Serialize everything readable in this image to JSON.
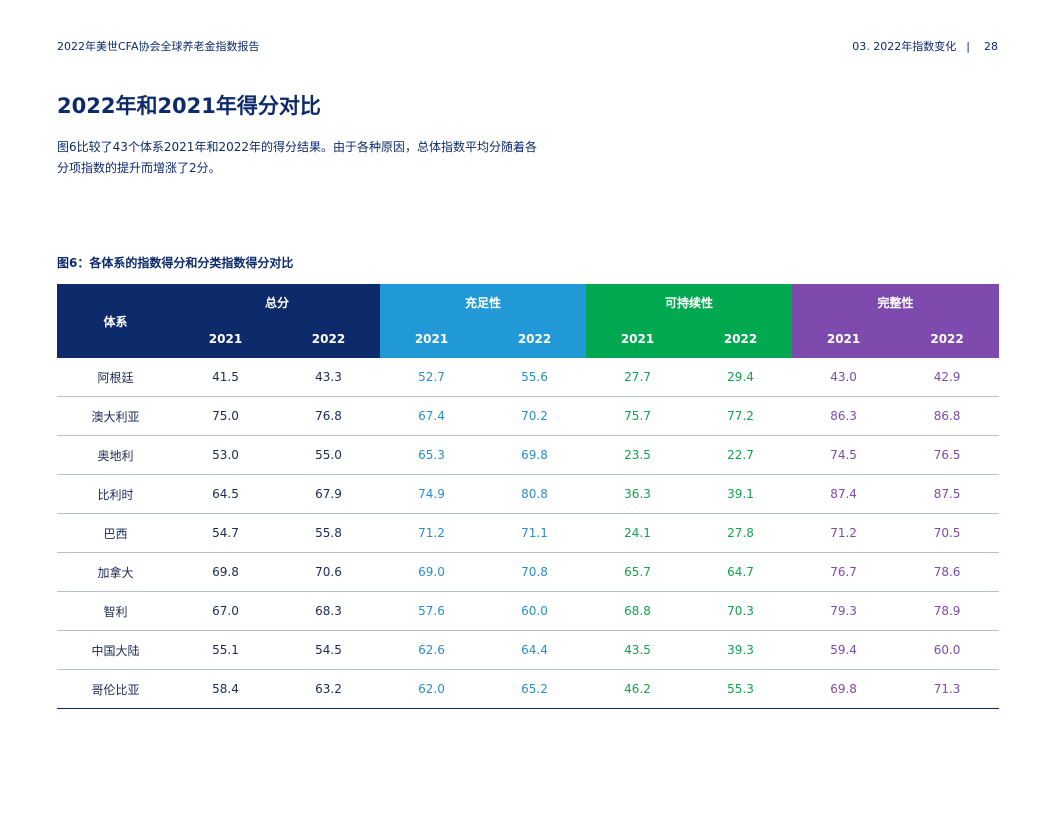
{
  "header": {
    "left": "2022年美世CFA协会全球养老金指数报告",
    "section": "03. 2022年指数变化",
    "separator": "|",
    "page_number": "28"
  },
  "title": "2022年和2021年得分对比",
  "intro": [
    "图6比较了43个体系2021年和2022年的得分结果。由于各种原因，总体指数平均分随着各",
    "分项指数的提升而增涨了2分。"
  ],
  "figure_title": "图6：各体系的指数得分和分类指数得分对比",
  "table": {
    "system_header": "体系",
    "groups": [
      "总分",
      "充足性",
      "可持续性",
      "完整性"
    ],
    "years": [
      "2021",
      "2022"
    ],
    "rows": [
      {
        "name": "阿根廷",
        "values": [
          "41.5",
          "43.3",
          "52.7",
          "55.6",
          "27.7",
          "29.4",
          "43.0",
          "42.9"
        ]
      },
      {
        "name": "澳大利亚",
        "values": [
          "75.0",
          "76.8",
          "67.4",
          "70.2",
          "75.7",
          "77.2",
          "86.3",
          "86.8"
        ]
      },
      {
        "name": "奥地利",
        "values": [
          "53.0",
          "55.0",
          "65.3",
          "69.8",
          "23.5",
          "22.7",
          "74.5",
          "76.5"
        ]
      },
      {
        "name": "比利时",
        "values": [
          "64.5",
          "67.9",
          "74.9",
          "80.8",
          "36.3",
          "39.1",
          "87.4",
          "87.5"
        ]
      },
      {
        "name": "巴西",
        "values": [
          "54.7",
          "55.8",
          "71.2",
          "71.1",
          "24.1",
          "27.8",
          "71.2",
          "70.5"
        ]
      },
      {
        "name": "加拿大",
        "values": [
          "69.8",
          "70.6",
          "69.0",
          "70.8",
          "65.7",
          "64.7",
          "76.7",
          "78.6"
        ]
      },
      {
        "name": "智利",
        "values": [
          "67.0",
          "68.3",
          "57.6",
          "60.0",
          "68.8",
          "70.3",
          "79.3",
          "78.9"
        ]
      },
      {
        "name": "中国大陆",
        "values": [
          "55.1",
          "54.5",
          "62.6",
          "64.4",
          "43.5",
          "39.3",
          "59.4",
          "60.0"
        ]
      },
      {
        "name": "哥伦比亚",
        "values": [
          "58.4",
          "63.2",
          "62.0",
          "65.2",
          "46.2",
          "55.3",
          "69.8",
          "71.3"
        ]
      }
    ]
  },
  "colors": {
    "navy": "#0d2a6b",
    "adequacy": "#2199d6",
    "sustainability": "#00a850",
    "integrity": "#7e4aad"
  }
}
